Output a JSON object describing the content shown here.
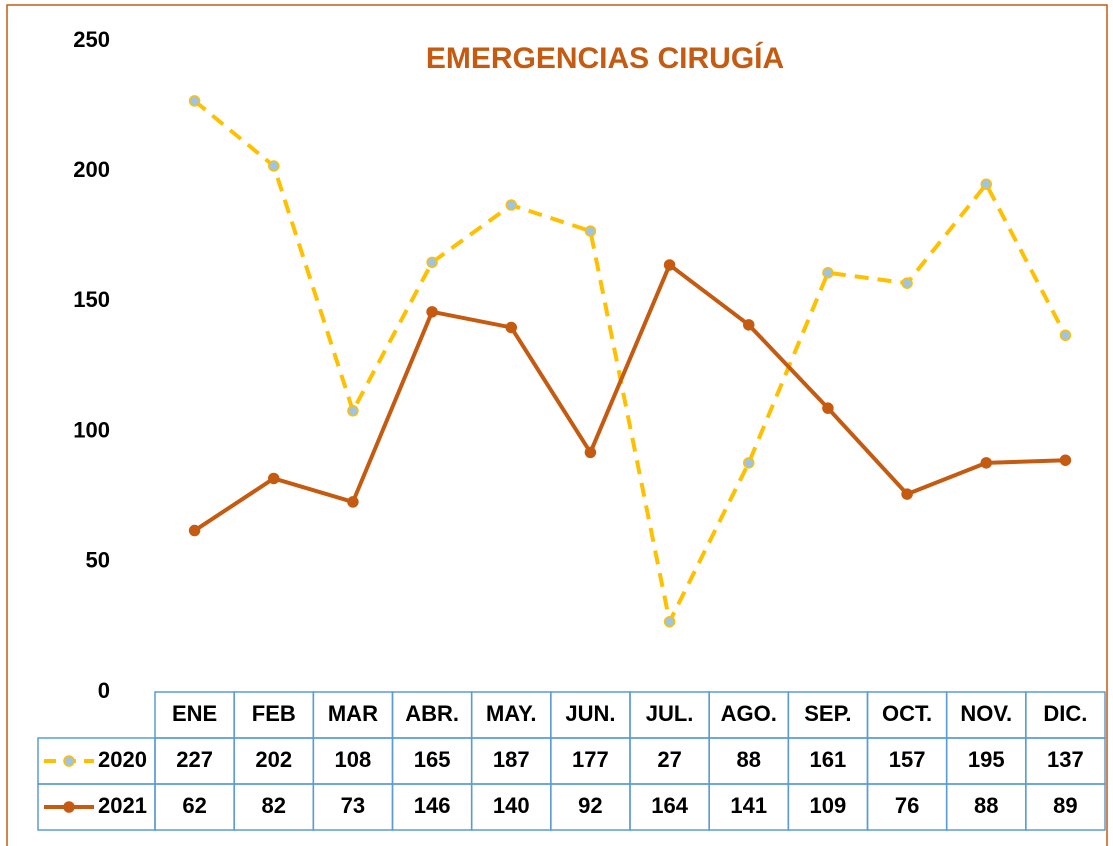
{
  "chart_data": {
    "type": "line",
    "title": "EMERGENCIAS CIRUGÍA",
    "categories": [
      "ENE",
      "FEB",
      "MAR",
      "ABR.",
      "MAY.",
      "JUN.",
      "JUL.",
      "AGO.",
      "SEP.",
      "OCT.",
      "NOV.",
      "DIC."
    ],
    "series": [
      {
        "name": "2020",
        "color": "#ffc000",
        "marker_color": "#9dc3e6",
        "dashed": true,
        "values": [
          227,
          202,
          108,
          165,
          187,
          177,
          27,
          88,
          161,
          157,
          195,
          137
        ]
      },
      {
        "name": "2021",
        "color": "#c55a11",
        "marker_color": "#c55a11",
        "dashed": false,
        "values": [
          62,
          82,
          73,
          146,
          140,
          92,
          164,
          141,
          109,
          76,
          88,
          89
        ]
      }
    ],
    "ylim": [
      0,
      250
    ],
    "yticks": [
      0,
      50,
      100,
      150,
      200,
      250
    ],
    "grid": false,
    "legend": "data-table"
  }
}
